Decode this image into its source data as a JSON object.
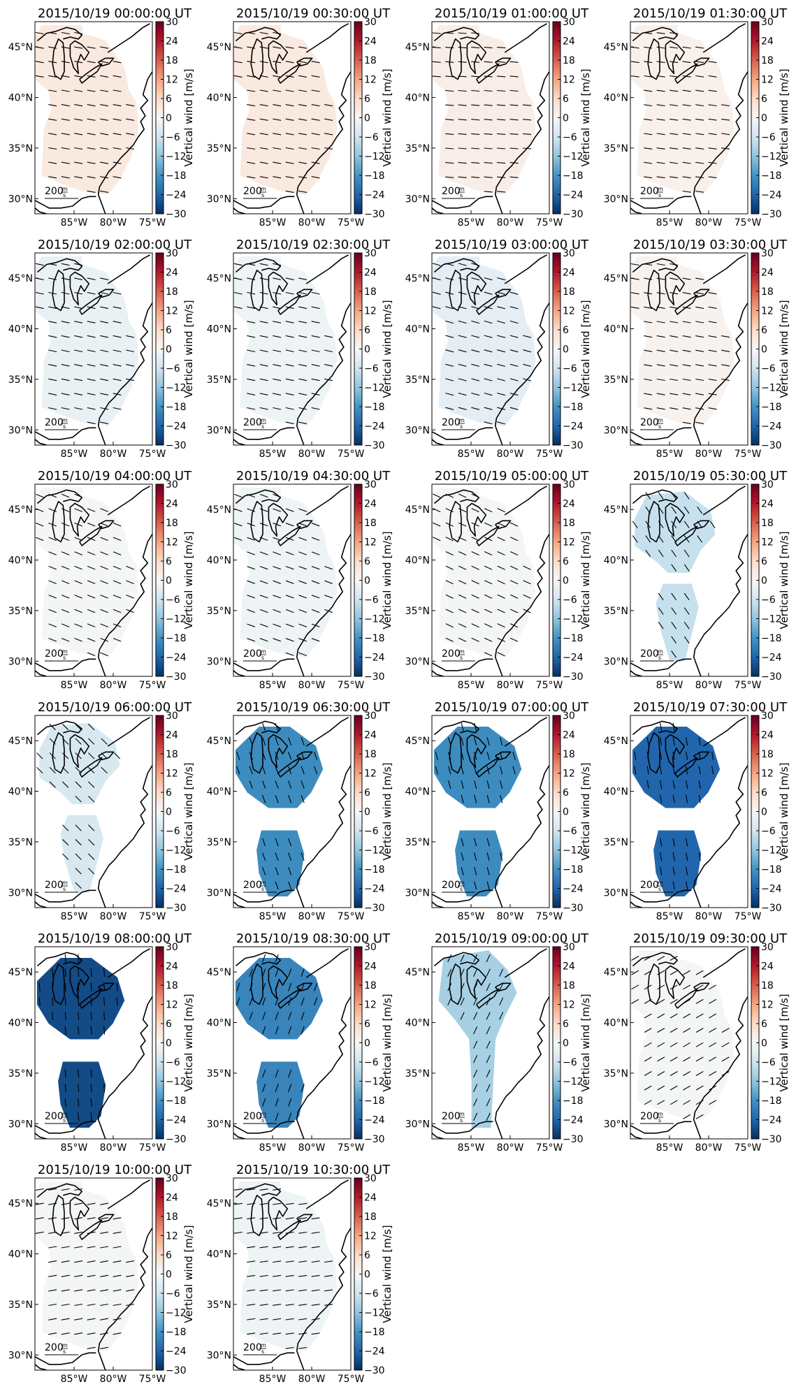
{
  "figure": {
    "colorbar": {
      "label": "Vertical wind [m/s]",
      "ticks": [
        "30",
        "24",
        "18",
        "12",
        "6",
        "0",
        "−6",
        "−12",
        "−18",
        "−24",
        "−30"
      ],
      "vmin": -30,
      "vmax": 30,
      "colors": [
        "#053061",
        "#2166ac",
        "#4393c3",
        "#92c5de",
        "#d1e5f0",
        "#f7f7f7",
        "#fddbc7",
        "#f4a582",
        "#d6604d",
        "#b2182b",
        "#67001f"
      ]
    },
    "lat_ticks": [
      "45°N",
      "40°N",
      "35°N",
      "30°N"
    ],
    "lon_ticks": [
      "85°W",
      "80°W",
      "75°W"
    ],
    "reference_vector": {
      "magnitude": "200",
      "unit_num": "m",
      "unit_den": "s"
    },
    "panels": [
      {
        "title": "2015/10/19 00:00:00 UT",
        "value": 3,
        "shape": "full",
        "arrow_angle": 10
      },
      {
        "title": "2015/10/19 00:30:00 UT",
        "value": 3,
        "shape": "full",
        "arrow_angle": 10
      },
      {
        "title": "2015/10/19 01:00:00 UT",
        "value": 2,
        "shape": "full",
        "arrow_angle": 5
      },
      {
        "title": "2015/10/19 01:30:00 UT",
        "value": 1.5,
        "shape": "full",
        "arrow_angle": 8
      },
      {
        "title": "2015/10/19 02:00:00 UT",
        "value": -2,
        "shape": "full",
        "arrow_angle": 12
      },
      {
        "title": "2015/10/19 02:30:00 UT",
        "value": -1.5,
        "shape": "full",
        "arrow_angle": 12
      },
      {
        "title": "2015/10/19 03:00:00 UT",
        "value": -3,
        "shape": "full",
        "arrow_angle": 15
      },
      {
        "title": "2015/10/19 03:30:00 UT",
        "value": 1,
        "shape": "full",
        "arrow_angle": 10
      },
      {
        "title": "2015/10/19 04:00:00 UT",
        "value": -0.5,
        "shape": "full",
        "arrow_angle": 22
      },
      {
        "title": "2015/10/19 04:30:00 UT",
        "value": -1.5,
        "shape": "full",
        "arrow_angle": 20
      },
      {
        "title": "2015/10/19 05:00:00 UT",
        "value": -0.5,
        "shape": "full",
        "arrow_angle": 25
      },
      {
        "title": "2015/10/19 05:30:00 UT",
        "value": -7,
        "shape": "split",
        "arrow_angle": 55
      },
      {
        "title": "2015/10/19 06:00:00 UT",
        "value": -5,
        "shape": "split",
        "arrow_angle": 45
      },
      {
        "title": "2015/10/19 06:30:00 UT",
        "value": -19,
        "shape": "twoblob",
        "arrow_angle": 70
      },
      {
        "title": "2015/10/19 07:00:00 UT",
        "value": -19,
        "shape": "twoblob",
        "arrow_angle": 75
      },
      {
        "title": "2015/10/19 07:30:00 UT",
        "value": -24,
        "shape": "twoblob",
        "arrow_angle": 80
      },
      {
        "title": "2015/10/19 08:00:00 UT",
        "value": -27,
        "shape": "twoblob",
        "arrow_angle": 85
      },
      {
        "title": "2015/10/19 08:30:00 UT",
        "value": -20,
        "shape": "twoblob",
        "arrow_angle": 110
      },
      {
        "title": "2015/10/19 09:00:00 UT",
        "value": -10,
        "shape": "corridor",
        "arrow_angle": 115
      },
      {
        "title": "2015/10/19 09:30:00 UT",
        "value": -0.5,
        "shape": "full",
        "arrow_angle": 150
      },
      {
        "title": "2015/10/19 10:00:00 UT",
        "value": -0.5,
        "shape": "full",
        "arrow_angle": 170
      },
      {
        "title": "2015/10/19 10:30:00 UT",
        "value": -1.5,
        "shape": "full",
        "arrow_angle": 172
      }
    ]
  }
}
